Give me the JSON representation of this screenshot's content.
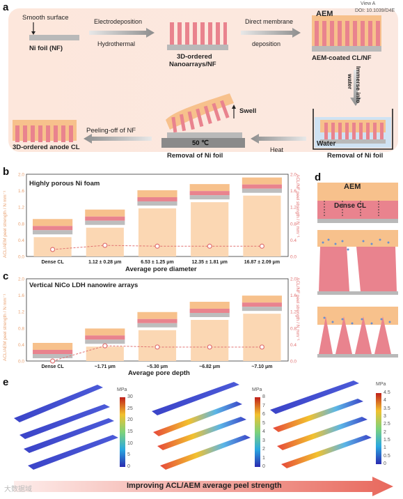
{
  "header": {
    "doi_text": "DOI: 10.1039/D4E",
    "view_text": "View A"
  },
  "panel_a": {
    "letter": "a",
    "smooth_surface": "Smooth surface",
    "ni_foil": "Ni foil (NF)",
    "step1": [
      "Electrodeposition",
      "Hydrothermal"
    ],
    "nanoarrays": [
      "3D-ordered",
      "Nanoarrays/NF"
    ],
    "step2": [
      "Direct membrane",
      "deposition"
    ],
    "aem": "AEM",
    "aem_coated": "AEM-coated CL/NF",
    "immerse": [
      "Immerse into",
      "water"
    ],
    "water": "Water",
    "removal1": "Removal of Ni foil",
    "heat": "Heat",
    "swell": "Swell",
    "temp": "50 ℃",
    "removal2": "Removal of Ni foil",
    "peeling": "Peeling-off of NF",
    "anode": "3D-ordered anode CL"
  },
  "panel_b": {
    "letter": "b",
    "title": "Highly porous Ni foam",
    "ylabel_left": "ACL/AEM peel strength / N mm⁻¹",
    "ylabel_right": "ACL/NF peel strength / N mm⁻¹",
    "xlabel": "Average pore diameter",
    "ticks": [
      "0.0",
      "0.4",
      "0.8",
      "1.2",
      "1.6",
      "2.0"
    ]
  },
  "panel_c": {
    "letter": "c",
    "title": "Vertical NiCo LDH nanowire arrays",
    "ylabel_left": "ACL/AEM peel strength / N mm⁻¹",
    "ylabel_right": "ACL/NF peel strength / N mm⁻¹",
    "xlabel": "Average pore depth",
    "ticks": [
      "0.0",
      "0.4",
      "0.8",
      "1.2",
      "1.6",
      "2.0"
    ]
  },
  "panel_d": {
    "letter": "d",
    "aem": "AEM",
    "dense_cl": "Dense CL"
  },
  "panel_e": {
    "letter": "e",
    "unit": "MPa",
    "scale1": [
      "30",
      "25",
      "20",
      "15",
      "10",
      "5",
      "0"
    ],
    "scale2": [
      "8",
      "7",
      "6",
      "5",
      "4",
      "3",
      "2",
      "1",
      "0"
    ],
    "scale3": [
      "4.5",
      "4",
      "3.5",
      "3",
      "2.5",
      "2",
      "1.5",
      "1",
      "0.5",
      "0"
    ]
  },
  "footer": {
    "arrow_text": "Improving ACL/AEM average peel strength",
    "watermark": "大数据域"
  },
  "chart_data": [
    {
      "type": "bar",
      "title": "Highly porous Ni foam",
      "categories": [
        "Dense CL",
        "1.12 ± 0.28 μm",
        "6.53 ± 1.25 μm",
        "12.35 ± 1.81 μm",
        "16.87 ± 2.09 μm"
      ],
      "xlabel": "Average pore diameter",
      "ylabel": "ACL/AEM peel strength / N mm⁻¹",
      "ylabel_right": "ACL/NF peel strength / N mm⁻¹",
      "ylim": [
        0,
        2.0
      ],
      "series": [
        {
          "values": [
            0.47,
            0.7,
            1.17,
            1.32,
            1.48
          ]
        },
        {
          "values": [
            0.17,
            0.27,
            0.25,
            0.25,
            0.25
          ]
        }
      ]
    },
    {
      "type": "bar",
      "title": "Vertical NiCo LDH nanowire arrays",
      "categories": [
        "Dense CL",
        "~1.71 μm",
        "~5.30 μm",
        "~6.82 μm",
        "~7.10 μm"
      ],
      "xlabel": "Average pore depth",
      "ylabel": "ACL/AEM peel strength / N mm⁻¹",
      "ylabel_right": "ACL/NF peel strength / N mm⁻¹",
      "ylim": [
        0,
        2.0
      ],
      "series": [
        {
          "values": [
            0.0,
            0.35,
            0.75,
            1.0,
            1.15
          ]
        },
        {
          "values": [
            0.0,
            0.37,
            0.34,
            0.34,
            0.34
          ]
        }
      ]
    }
  ]
}
